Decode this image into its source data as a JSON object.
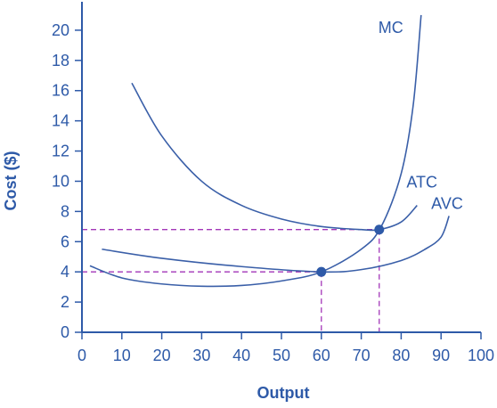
{
  "chart_data": {
    "type": "line",
    "xlabel": "Output",
    "ylabel": "Cost ($)",
    "xlim": [
      0,
      100
    ],
    "ylim": [
      0,
      22
    ],
    "xticks": [
      0,
      10,
      20,
      30,
      40,
      50,
      60,
      70,
      80,
      90,
      100
    ],
    "yticks": [
      0,
      2,
      4,
      6,
      8,
      10,
      12,
      14,
      16,
      18,
      20
    ],
    "grid": false,
    "colors": {
      "curve": "#3a5fa8",
      "axis": "#2e5aa8",
      "text": "#2e5aa8",
      "guide": "#a336b8",
      "point": "#2e5aa8"
    },
    "series": [
      {
        "name": "MC",
        "x": [
          2,
          10,
          20,
          30,
          40,
          50,
          60,
          70,
          75,
          80,
          83,
          85
        ],
        "y": [
          4.4,
          3.6,
          3.2,
          3.05,
          3.1,
          3.4,
          4.0,
          5.5,
          7.0,
          10.5,
          15.0,
          21.0
        ]
      },
      {
        "name": "ATC",
        "x": [
          12.5,
          20,
          30,
          40,
          50,
          60,
          70,
          74.5,
          80,
          84
        ],
        "y": [
          16.5,
          13.0,
          10.0,
          8.4,
          7.5,
          7.0,
          6.8,
          6.8,
          7.3,
          8.4
        ]
      },
      {
        "name": "AVC",
        "x": [
          5,
          20,
          40,
          60,
          70,
          80,
          86,
          90,
          92
        ],
        "y": [
          5.5,
          4.9,
          4.35,
          4.0,
          4.15,
          4.75,
          5.5,
          6.3,
          7.7
        ]
      }
    ],
    "points": [
      {
        "x": 60,
        "y": 4.0
      },
      {
        "x": 74.5,
        "y": 6.8
      }
    ]
  }
}
